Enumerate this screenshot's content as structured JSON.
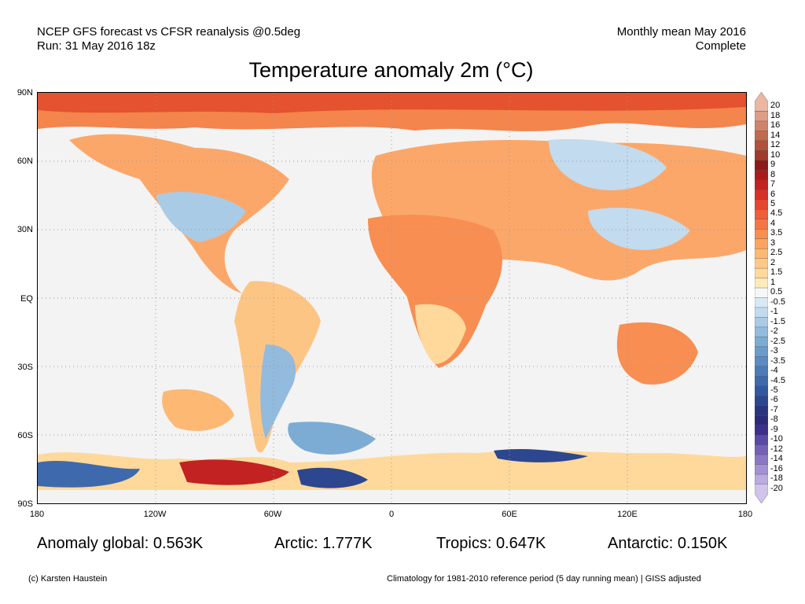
{
  "header": {
    "left_line1": "NCEP GFS forecast vs CFSR reanalysis @0.5deg",
    "left_line2": "Run: 31 May 2016 18z",
    "right_line1": "Monthly mean May 2016",
    "right_line2": "Complete"
  },
  "title": "Temperature anomaly 2m (°C)",
  "map": {
    "lat_labels": [
      "90N",
      "60N",
      "30N",
      "EQ",
      "30S",
      "60S",
      "90S"
    ],
    "lon_labels": [
      "180",
      "120W",
      "60W",
      "0",
      "60E",
      "120E",
      "180"
    ],
    "ocean_color": "#f3f3f3",
    "warm_color": "#fdd9a0",
    "cold_color": "#b9d6ec"
  },
  "colorbar": {
    "labels": [
      "20",
      "18",
      "16",
      "14",
      "12",
      "10",
      "9",
      "8",
      "7",
      "6",
      "5",
      "4.5",
      "4",
      "3.5",
      "3",
      "2.5",
      "2",
      "1.5",
      "1",
      "0.5",
      "-0.5",
      "-1",
      "-1.5",
      "-2",
      "-2.5",
      "-3",
      "-3.5",
      "-4",
      "-4.5",
      "-5",
      "-6",
      "-7",
      "-8",
      "-9",
      "-10",
      "-12",
      "-14",
      "-16",
      "-18",
      "-20"
    ],
    "colors": [
      "#e9b7a2",
      "#dd9d86",
      "#cf8469",
      "#c06b50",
      "#b0533c",
      "#a03a2c",
      "#8c1a1a",
      "#a81c1c",
      "#c22222",
      "#d63027",
      "#e6452f",
      "#ef5d3a",
      "#f47646",
      "#f88e52",
      "#fba462",
      "#fdb873",
      "#fec985",
      "#fed99b",
      "#feebb9",
      "#f7f7f7",
      "#d8e9f5",
      "#c2dbee",
      "#a9cbe6",
      "#92bbdd",
      "#7cacd4",
      "#6a9ccb",
      "#5a8cc2",
      "#4b7bb8",
      "#3e6aad",
      "#3358a0",
      "#2c468f",
      "#2a357e",
      "#2d2a7a",
      "#3d2f8a",
      "#5a4aa6",
      "#7361b8",
      "#8a78c6",
      "#a291d4",
      "#baabe0",
      "#d0c4ea"
    ]
  },
  "stats": {
    "global": "Anomaly global: 0.563K",
    "arctic": "Arctic: 1.777K",
    "tropics": "Tropics: 0.647K",
    "antarctic": "Antarctic: 0.150K"
  },
  "footer": {
    "credit": "(c) Karsten Haustein",
    "climatology": "Climatology for 1981-2010 reference period (5 day running mean) | GISS adjusted"
  }
}
